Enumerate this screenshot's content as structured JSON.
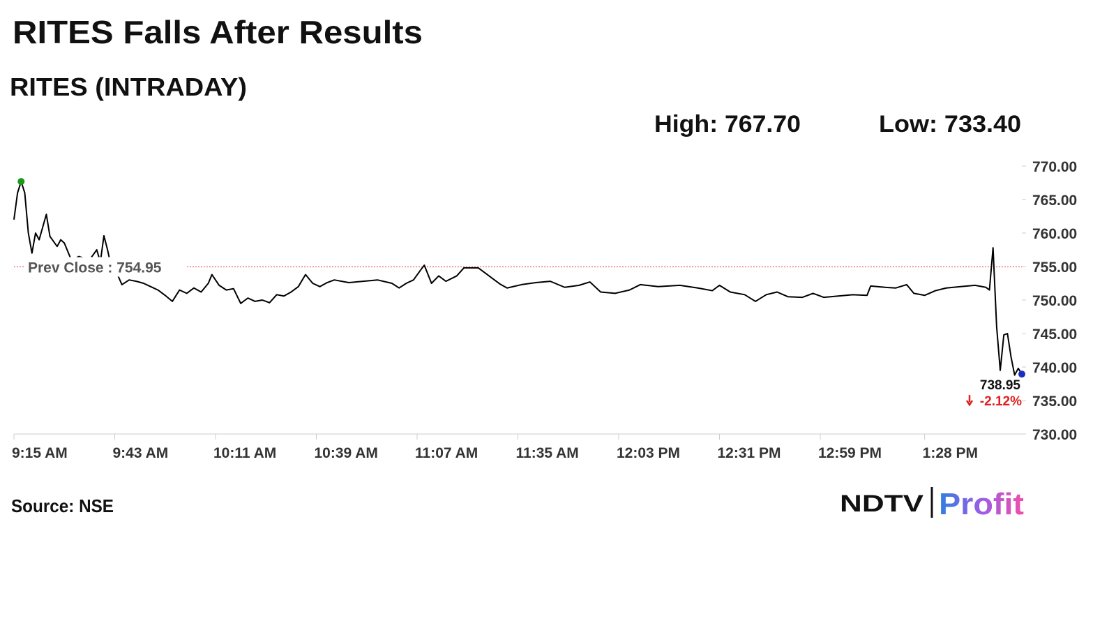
{
  "chart_data": {
    "type": "line",
    "title": "RITES Falls After Results",
    "subtitle": "RITES (INTRADAY)",
    "high": {
      "value": 767.7,
      "label": "High: 767.70"
    },
    "low": {
      "value": 733.4,
      "label": "Low: 733.40"
    },
    "prev_close": {
      "value": 754.95,
      "label": "Prev Close : 754.95"
    },
    "last_label": "738.95",
    "change": {
      "value": -2.12,
      "label": "-2.12%"
    },
    "source": "Source: NSE",
    "logo": {
      "left": "NDTV",
      "right": "Profit"
    },
    "color": "#000000",
    "prev_close_color": "#e03030",
    "x": [
      "9:15 AM",
      "9:16 AM",
      "9:17 AM",
      "9:18 AM",
      "9:19 AM",
      "9:20 AM",
      "9:21 AM",
      "9:22 AM",
      "9:24 AM",
      "9:25 AM",
      "9:27 AM",
      "9:28 AM",
      "9:29 AM",
      "9:31 AM",
      "9:33 AM",
      "9:36 AM",
      "9:38 AM",
      "9:39 AM",
      "9:40 AM",
      "9:41 AM",
      "9:42 AM",
      "9:44 AM",
      "9:45 AM",
      "9:47 AM",
      "9:49 AM",
      "9:51 AM",
      "9:53 AM",
      "9:55 AM",
      "9:57 AM",
      "9:59 AM",
      "10:01 AM",
      "10:03 AM",
      "10:05 AM",
      "10:07 AM",
      "10:09 AM",
      "10:10 AM",
      "10:12 AM",
      "10:14 AM",
      "10:16 AM",
      "10:18 AM",
      "10:20 AM",
      "10:22 AM",
      "10:24 AM",
      "10:26 AM",
      "10:28 AM",
      "10:30 AM",
      "10:32 AM",
      "10:34 AM",
      "10:36 AM",
      "10:38 AM",
      "10:40 AM",
      "10:42 AM",
      "10:44 AM",
      "10:48 AM",
      "10:52 AM",
      "10:56 AM",
      "11:00 AM",
      "11:02 AM",
      "11:04 AM",
      "11:06 AM",
      "11:08 AM",
      "11:09 AM",
      "11:11 AM",
      "11:13 AM",
      "11:15 AM",
      "11:18 AM",
      "11:20 AM",
      "11:24 AM",
      "11:26 AM",
      "11:28 AM",
      "11:30 AM",
      "11:32 AM",
      "11:36 AM",
      "11:40 AM",
      "11:44 AM",
      "11:48 AM",
      "11:52 AM",
      "11:55 AM",
      "11:58 AM",
      "12:02 PM",
      "12:06 PM",
      "12:09 PM",
      "12:14 PM",
      "12:20 PM",
      "12:25 PM",
      "12:29 PM",
      "12:31 PM",
      "12:34 PM",
      "12:38 PM",
      "12:41 PM",
      "12:44 PM",
      "12:47 PM",
      "12:50 PM",
      "12:54 PM",
      "12:57 PM",
      "1:00 PM",
      "1:04 PM",
      "1:08 PM",
      "1:12 PM",
      "1:13 PM",
      "1:17 PM",
      "1:20 PM",
      "1:23 PM",
      "1:25 PM",
      "1:28 PM",
      "1:31 PM",
      "1:34 PM",
      "1:38 PM",
      "1:42 PM",
      "1:45 PM",
      "1:46 PM",
      "1:47 PM",
      "1:48 PM",
      "1:49 PM",
      "1:50 PM",
      "1:51 PM",
      "1:52 PM",
      "1:53 PM",
      "1:54 PM",
      "1:55 PM"
    ],
    "values": [
      762,
      766,
      767.7,
      766,
      760,
      757,
      760,
      759,
      762.8,
      759.5,
      758,
      759,
      758.5,
      755.9,
      756.5,
      756,
      757.5,
      755.7,
      759.6,
      757.5,
      755,
      753.5,
      752.3,
      753,
      752.8,
      752.5,
      752,
      751.5,
      750.7,
      749.8,
      751.5,
      751,
      751.8,
      751.2,
      752.5,
      753.8,
      752.2,
      751.5,
      751.7,
      749.5,
      750.3,
      749.8,
      750,
      749.6,
      750.8,
      750.6,
      751.2,
      752,
      753.8,
      752.5,
      752,
      752.6,
      753,
      752.6,
      752.8,
      753,
      752.5,
      751.8,
      752.5,
      753,
      754.5,
      755.2,
      752.5,
      753.6,
      752.8,
      753.6,
      754.8,
      754.8,
      754,
      753.2,
      752.4,
      751.8,
      752.3,
      752.6,
      752.8,
      751.9,
      752.2,
      752.7,
      751.2,
      751,
      751.5,
      752.3,
      752,
      752.2,
      751.8,
      751.4,
      752.2,
      751.2,
      750.8,
      749.8,
      750.8,
      751.2,
      750.5,
      750.4,
      751,
      750.4,
      750.6,
      750.8,
      750.7,
      752.1,
      751.9,
      751.8,
      752.3,
      751,
      750.7,
      751.4,
      751.8,
      752,
      752.2,
      751.9,
      751.5,
      757.8,
      746,
      739.5,
      744.8,
      745,
      741.5,
      738.8,
      739.8,
      738.95
    ],
    "xlim": [
      "9:15 AM",
      "1:55 PM"
    ],
    "xticks": [
      "9:15 AM",
      "9:43 AM",
      "10:11 AM",
      "10:39 AM",
      "11:07 AM",
      "11:35 AM",
      "12:03 PM",
      "12:31 PM",
      "12:59 PM",
      "1:28 PM"
    ],
    "ylim": [
      730,
      770
    ],
    "yticks": [
      {
        "value": 730,
        "label": "730.00"
      },
      {
        "value": 735,
        "label": "735.00"
      },
      {
        "value": 740,
        "label": "740.00"
      },
      {
        "value": 745,
        "label": "745.00"
      },
      {
        "value": 750,
        "label": "750.00"
      },
      {
        "value": 755,
        "label": "755.00"
      },
      {
        "value": 760,
        "label": "760.00"
      },
      {
        "value": 765,
        "label": "765.00"
      },
      {
        "value": 770,
        "label": "770.00"
      }
    ]
  }
}
